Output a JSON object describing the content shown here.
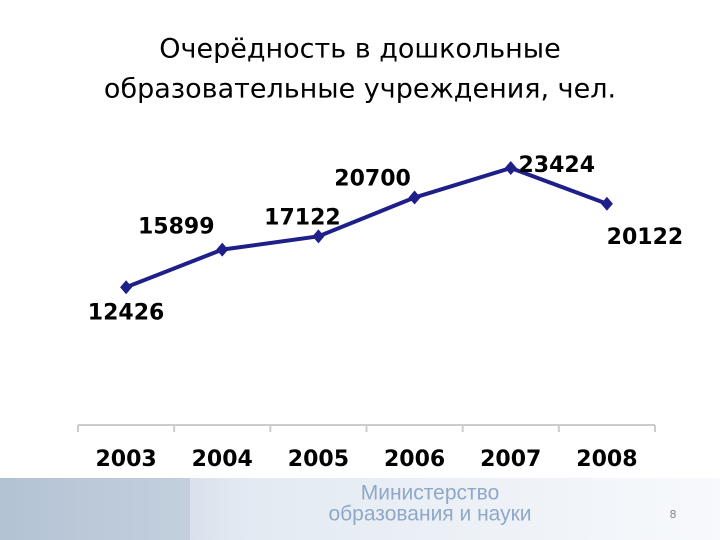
{
  "chart_data": {
    "type": "line",
    "title": [
      "Очерёдность в дошкольные",
      "образовательные учреждения, чел."
    ],
    "categories": [
      "2003",
      "2004",
      "2005",
      "2006",
      "2007",
      "2008"
    ],
    "values": [
      12426,
      15899,
      17122,
      20700,
      23424,
      20122
    ],
    "color": "#1f1f8a"
  },
  "footer": {
    "line1": "Министерство",
    "line2": "образования и науки",
    "page_number": "8"
  }
}
